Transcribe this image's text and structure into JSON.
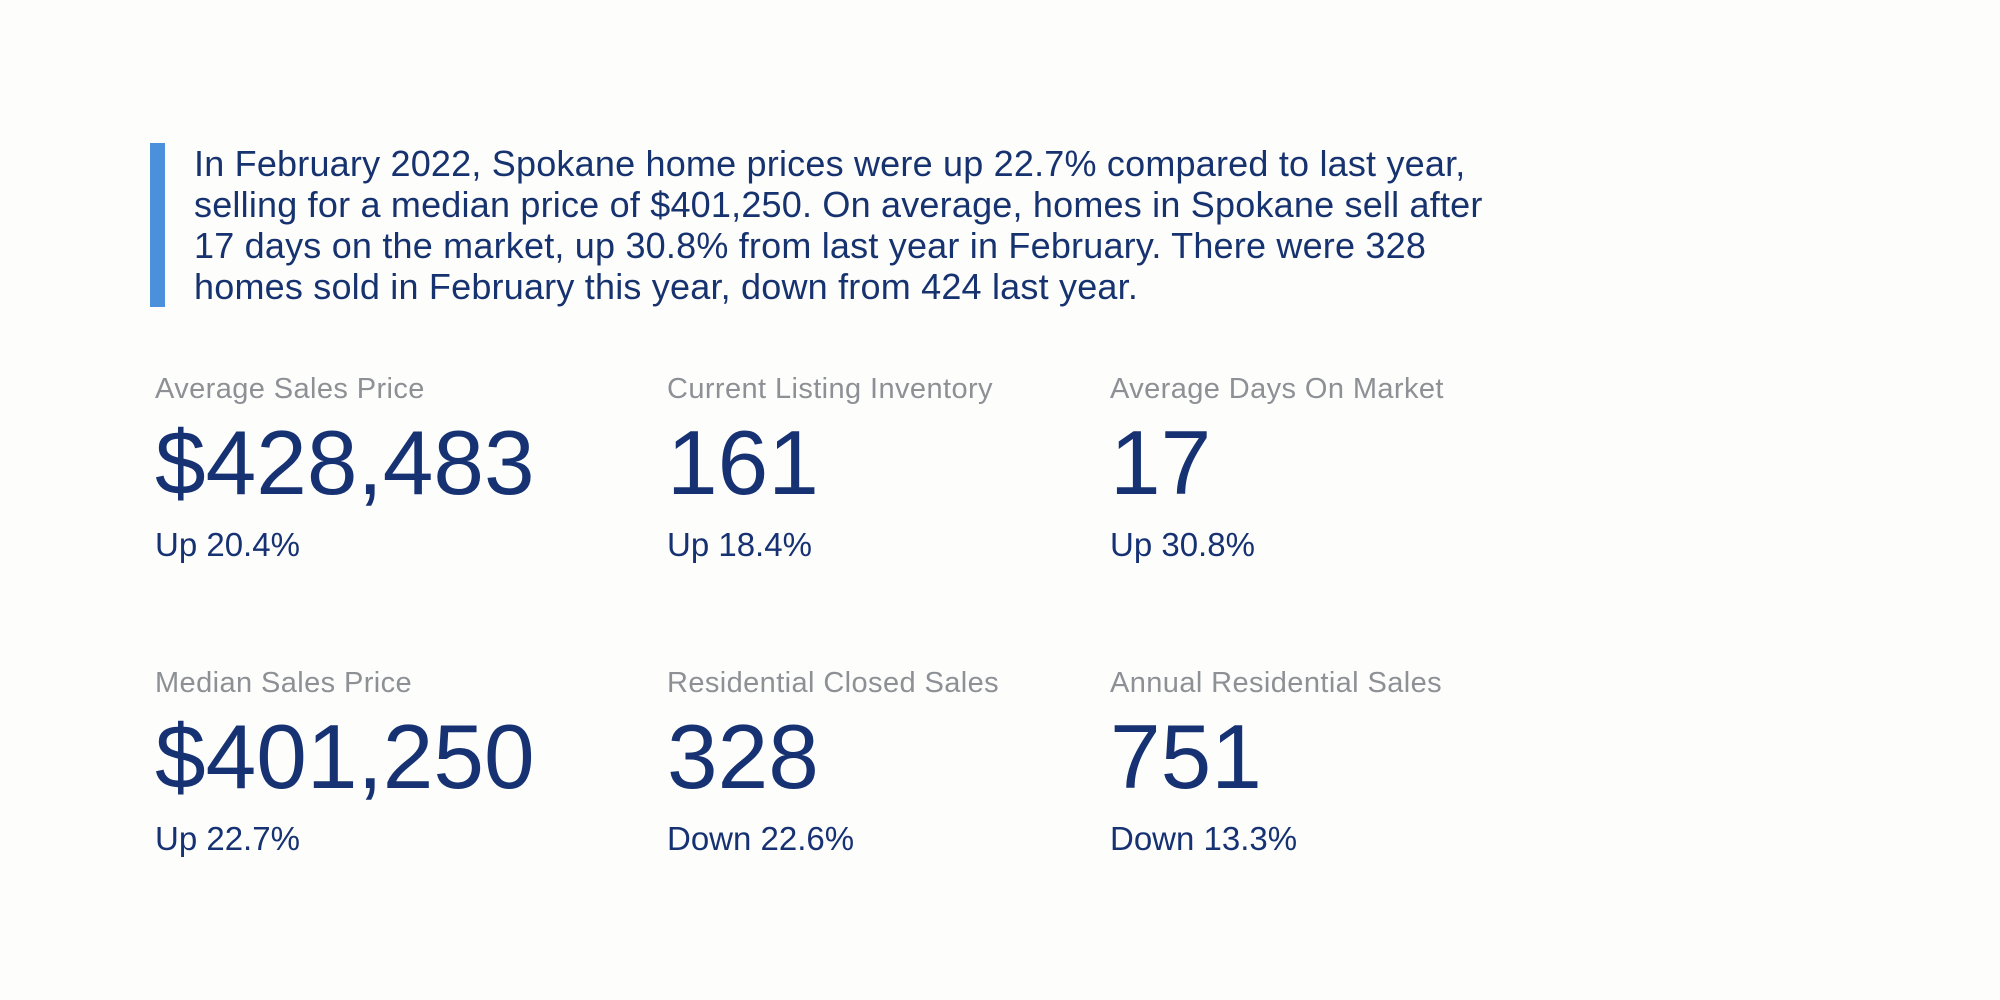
{
  "page": {
    "background_color": "#fdfdfc",
    "accent_color": "#4a90db",
    "primary_text_color": "#163273",
    "label_color": "#8d9095"
  },
  "summary": {
    "text": "In February 2022, Spokane home prices were up 22.7% compared to last year, selling for a median price of $401,250. On average, homes in Spokane sell after 17 days on the market, up 30.8% from last year in February. There were 328 homes sold in February this year, down from 424 last year."
  },
  "stats": [
    {
      "label": "Average Sales Price",
      "value": "$428,483",
      "change": "Up 20.4%"
    },
    {
      "label": "Current Listing Inventory",
      "value": "161",
      "change": "Up 18.4%"
    },
    {
      "label": "Average Days On Market",
      "value": "17",
      "change": "Up 30.8%"
    },
    {
      "label": "Median Sales Price",
      "value": "$401,250",
      "change": "Up 22.7%"
    },
    {
      "label": "Residential Closed Sales",
      "value": "328",
      "change": "Down 22.6%"
    },
    {
      "label": "Annual Residential Sales",
      "value": "751",
      "change": "Down 13.3%"
    }
  ]
}
